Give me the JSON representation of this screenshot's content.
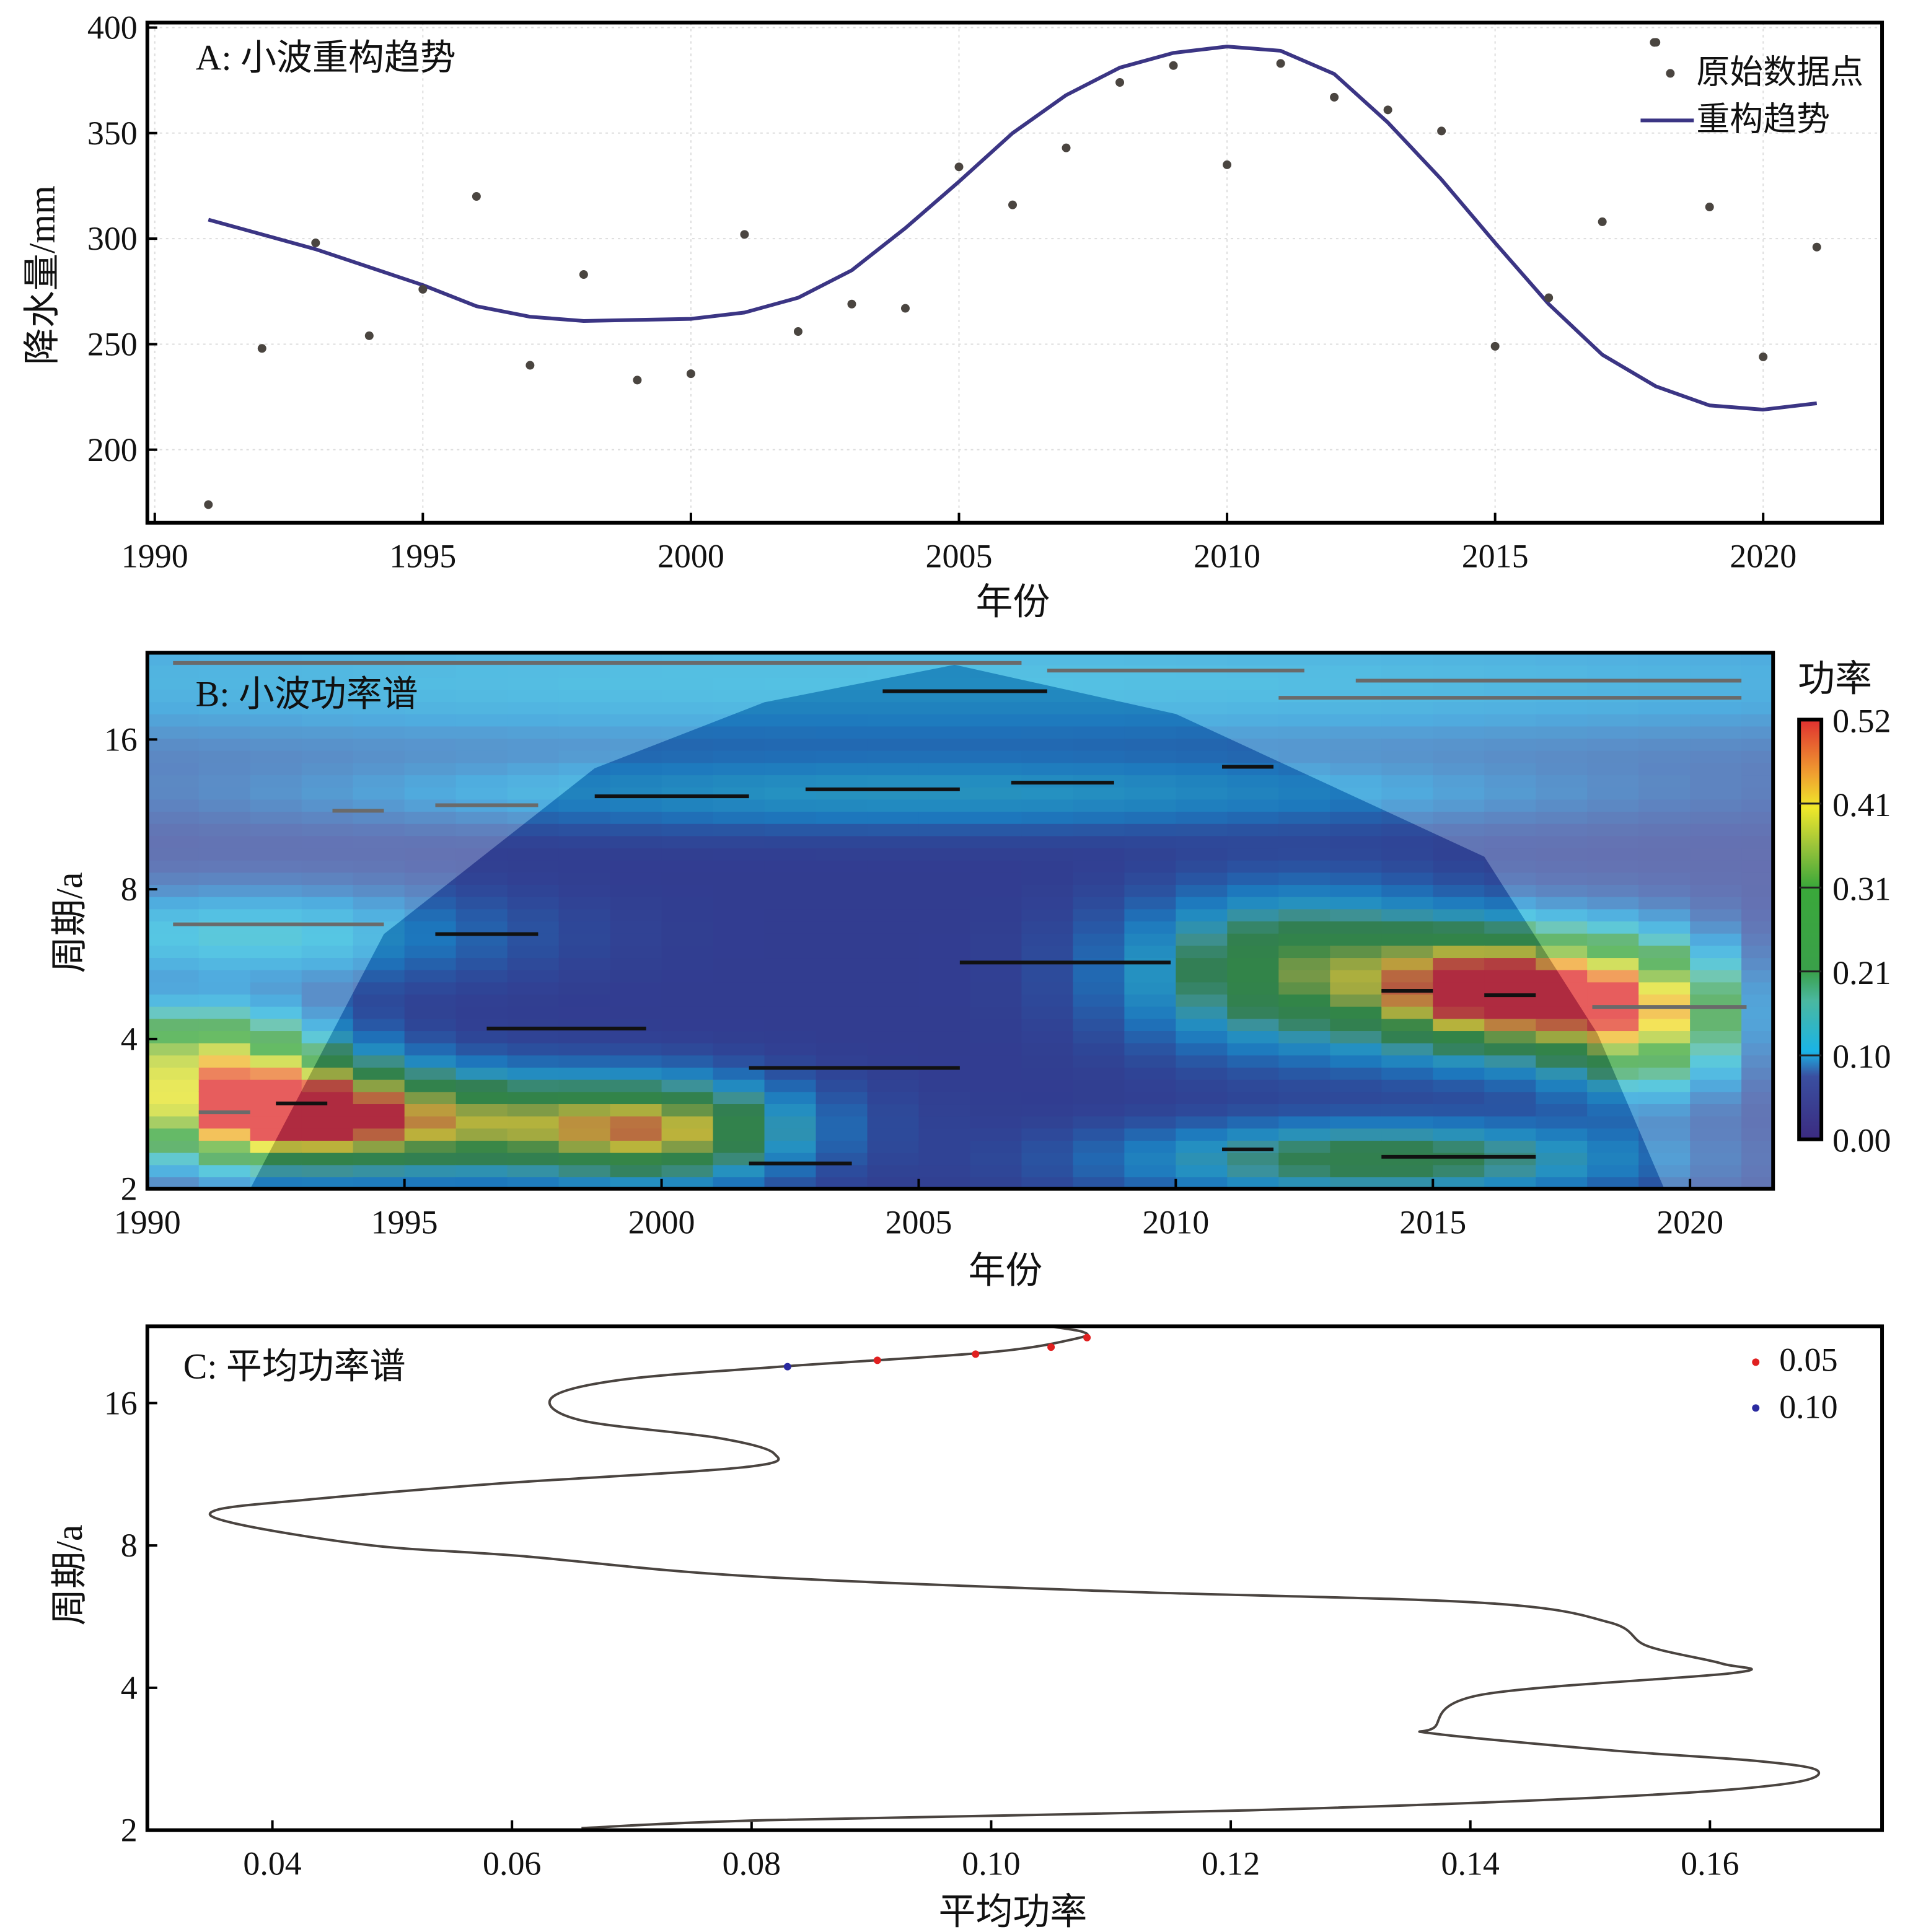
{
  "chart_data": [
    {
      "id": "A",
      "type": "scatter+line",
      "title": "A: 小波重构趋势",
      "xlabel": "年份",
      "ylabel": "降水量/mm",
      "xlim": [
        1990,
        2023
      ],
      "ylim": [
        170,
        400
      ],
      "xticks": [
        1990,
        1995,
        2000,
        2005,
        2010,
        2015,
        2020
      ],
      "yticks": [
        200,
        250,
        300,
        350,
        400
      ],
      "legend": {
        "position": "top-right",
        "entries": [
          "原始数据点",
          "重构趋势"
        ]
      },
      "grid": true,
      "colors": {
        "points": "#4a4540",
        "trend": "#3b3584"
      },
      "series": [
        {
          "name": "原始数据点",
          "type": "scatter",
          "x": [
            1991,
            1992,
            1993,
            1994,
            1995,
            1996,
            1997,
            1998,
            1999,
            2000,
            2001,
            2002,
            2003,
            2004,
            2005,
            2006,
            2007,
            2008,
            2009,
            2010,
            2011,
            2012,
            2013,
            2014,
            2015,
            2016,
            2017,
            2018,
            2019,
            2020,
            2021
          ],
          "y": [
            174,
            248,
            298,
            254,
            276,
            320,
            240,
            283,
            233,
            236,
            302,
            256,
            269,
            267,
            334,
            316,
            343,
            374,
            382,
            335,
            383,
            367,
            361,
            351,
            249,
            272,
            308,
            393,
            315,
            244,
            296
          ]
        },
        {
          "name": "重构趋势",
          "type": "line",
          "x": [
            1991,
            1993,
            1995,
            1996,
            1997,
            1998,
            2000,
            2001,
            2002,
            2003,
            2004,
            2005,
            2006,
            2007,
            2008,
            2009,
            2010,
            2011,
            2012,
            2013,
            2014,
            2015,
            2016,
            2017,
            2018,
            2019,
            2020,
            2021
          ],
          "y": [
            309,
            295,
            278,
            268,
            263,
            261,
            262,
            265,
            272,
            285,
            305,
            327,
            350,
            368,
            381,
            388,
            391,
            389,
            378,
            355,
            328,
            298,
            269,
            245,
            230,
            221,
            219,
            222
          ]
        }
      ]
    },
    {
      "id": "B",
      "type": "heatmap",
      "title": "B: 小波功率谱",
      "xlabel": "年份",
      "ylabel": "周期/a",
      "xlim": [
        1990,
        2021.5
      ],
      "ylim": [
        2,
        24
      ],
      "yscale": "log2",
      "xticks": [
        1990,
        1995,
        2000,
        2005,
        2010,
        2015,
        2020
      ],
      "yticks": [
        2,
        4,
        8,
        16
      ],
      "colorbar": {
        "title": "功率",
        "ticks": [
          "0.52",
          "0.41",
          "0.31",
          "0.21",
          "0.10",
          "0.00"
        ],
        "range": [
          0,
          0.52
        ]
      },
      "base_power": 0.05,
      "hotspots": [
        {
          "year": 1992.5,
          "period": 2.9,
          "power": 0.5,
          "year_spread": 1.8,
          "octave_spread": 0.22
        },
        {
          "year": 1996.5,
          "period": 2.7,
          "power": 0.3,
          "year_spread": 3,
          "octave_spread": 0.2
        },
        {
          "year": 2000,
          "period": 2.6,
          "power": 0.26,
          "year_spread": 1.5,
          "octave_spread": 0.2
        },
        {
          "year": 1991,
          "period": 3.8,
          "power": 0.26,
          "year_spread": 1.5,
          "octave_spread": 0.2
        },
        {
          "year": 2016.3,
          "period": 5.0,
          "power": 0.52,
          "year_spread": 1.6,
          "octave_spread": 0.25
        },
        {
          "year": 2012.5,
          "period": 5.5,
          "power": 0.28,
          "year_spread": 2,
          "octave_spread": 0.3
        },
        {
          "year": 2019,
          "period": 4.5,
          "power": 0.36,
          "year_spread": 1.2,
          "octave_spread": 0.3
        },
        {
          "year": 2014,
          "period": 2.3,
          "power": 0.2,
          "year_spread": 3,
          "octave_spread": 0.15
        },
        {
          "year": 2005,
          "period": 12.5,
          "power": 0.09,
          "year_spread": 8,
          "octave_spread": 0.15
        },
        {
          "year": 1992,
          "period": 6.5,
          "power": 0.1,
          "year_spread": 3,
          "octave_spread": 0.2
        },
        {
          "year": 2005,
          "period": 21,
          "power": 0.08,
          "year_spread": 20,
          "octave_spread": 0.3
        }
      ],
      "cone_of_influence": [
        [
          1992,
          2
        ],
        [
          1994.6,
          6.5
        ],
        [
          1998.7,
          14
        ],
        [
          2002,
          19
        ],
        [
          2005.7,
          22.6
        ],
        [
          2010,
          18
        ],
        [
          2016,
          9.3
        ],
        [
          2018.2,
          4.1
        ],
        [
          2019.5,
          2
        ]
      ],
      "ridges": [
        {
          "from": 1991,
          "to": 1992,
          "period": 2.85,
          "color": "#6a6a6a"
        },
        {
          "from": 1993.6,
          "to": 1994.6,
          "period": 11.5,
          "color": "#6a6a6a"
        },
        {
          "from": 1995.6,
          "to": 1997.6,
          "period": 11.8,
          "color": "#6a6a6a"
        },
        {
          "from": 1990.5,
          "to": 1994.6,
          "period": 6.8,
          "color": "#6a6a6a"
        },
        {
          "from": 2018.1,
          "to": 2021.1,
          "period": 4.64,
          "color": "#6a6a6a"
        },
        {
          "from": 1990.5,
          "to": 2007,
          "period": 22.8,
          "color": "#6a6a6a"
        },
        {
          "from": 2007.5,
          "to": 2012.5,
          "period": 22,
          "color": "#6a6a6a"
        },
        {
          "from": 2013.5,
          "to": 2021,
          "period": 21,
          "color": "#6a6a6a"
        },
        {
          "from": 2012,
          "to": 2021,
          "period": 19.4,
          "color": "#6a6a6a"
        },
        {
          "from": 1992.5,
          "to": 1993.5,
          "period": 2.97,
          "color": "#111111"
        },
        {
          "from": 1995.6,
          "to": 1997.6,
          "period": 6.5,
          "color": "#111111"
        },
        {
          "from": 1996.6,
          "to": 1999.7,
          "period": 4.2,
          "color": "#111111"
        },
        {
          "from": 1998.7,
          "to": 2001.7,
          "period": 12.3,
          "color": "#111111"
        },
        {
          "from": 2002.8,
          "to": 2005.8,
          "period": 12.7,
          "color": "#111111"
        },
        {
          "from": 2004.3,
          "to": 2007.5,
          "period": 20,
          "color": "#111111"
        },
        {
          "from": 2006.8,
          "to": 2008.8,
          "period": 13.1,
          "color": "#111111"
        },
        {
          "from": 2010.9,
          "to": 2011.9,
          "period": 14.1,
          "color": "#111111"
        },
        {
          "from": 2005.8,
          "to": 2009.9,
          "period": 5.7,
          "color": "#111111"
        },
        {
          "from": 2001.7,
          "to": 2005.8,
          "period": 3.5,
          "color": "#111111"
        },
        {
          "from": 2001.7,
          "to": 2003.7,
          "period": 2.25,
          "color": "#111111"
        },
        {
          "from": 2010.9,
          "to": 2011.9,
          "period": 2.4,
          "color": "#111111"
        },
        {
          "from": 2014,
          "to": 2015,
          "period": 5.0,
          "color": "#111111"
        },
        {
          "from": 2016,
          "to": 2017,
          "period": 4.9,
          "color": "#111111"
        },
        {
          "from": 2014,
          "to": 2017,
          "period": 2.32,
          "color": "#111111"
        }
      ]
    },
    {
      "id": "C",
      "type": "line",
      "title": "C: 平均功率谱",
      "xlabel": "平均功率",
      "ylabel": "周期/a",
      "xlim": [
        0.0296,
        0.1744
      ],
      "ylim": [
        2,
        23.3
      ],
      "yscale": "log2",
      "xticks": [
        "0.04",
        "0.06",
        "0.08",
        "0.10",
        "0.12",
        "0.14",
        "0.16"
      ],
      "yticks": [
        2,
        4,
        8,
        16
      ],
      "legend": {
        "position": "top-right",
        "entries": [
          {
            "label": "0.05",
            "color": "#e02020"
          },
          {
            "label": "0.10",
            "color": "#2a2aa0"
          }
        ]
      },
      "curve": {
        "power": [
          0.0658,
          0.0813,
          0.1206,
          0.1516,
          0.166,
          0.169,
          0.164,
          0.1517,
          0.137,
          0.137,
          0.141,
          0.162,
          0.161,
          0.1548,
          0.1516,
          0.141,
          0.11,
          0.0793,
          0.0607,
          0.0483,
          0.0369,
          0.0353,
          0.043,
          0.0586,
          0.0793,
          0.0819,
          0.0772,
          0.0658,
          0.0633,
          0.069,
          0.0824,
          0.1,
          0.1071,
          0.1077,
          0.1046
        ],
        "period": [
          2.02,
          2.1,
          2.2,
          2.35,
          2.5,
          2.67,
          2.8,
          2.95,
          3.2,
          3.3,
          3.87,
          4.3,
          4.5,
          4.9,
          5.5,
          6.05,
          6.4,
          6.9,
          7.6,
          8,
          8.9,
          9.5,
          10,
          10.8,
          11.7,
          12.5,
          13.5,
          14.7,
          16.4,
          17.9,
          19.1,
          20.5,
          21.9,
          22.6,
          23.3
        ]
      },
      "significant_points": [
        {
          "power": 0.083,
          "period": 19.1,
          "level": "0.10"
        },
        {
          "power": 0.0905,
          "period": 19.7,
          "level": "0.05"
        },
        {
          "power": 0.0987,
          "period": 20.3,
          "level": "0.05"
        },
        {
          "power": 0.105,
          "period": 21.0,
          "level": "0.05"
        },
        {
          "power": 0.108,
          "period": 22.0,
          "level": "0.05"
        }
      ]
    }
  ]
}
